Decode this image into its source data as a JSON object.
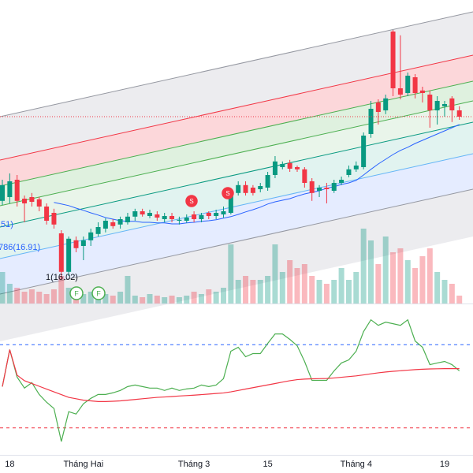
{
  "chart_data": [
    {
      "type": "candlestick",
      "categories": [
        null,
        "18",
        null,
        null,
        null,
        null,
        null,
        null,
        null,
        null,
        null,
        "Tháng Hai",
        null,
        null,
        null,
        null,
        null,
        null,
        null,
        null,
        null,
        null,
        null,
        null,
        null,
        null,
        "Tháng 3",
        null,
        null,
        null,
        null,
        null,
        null,
        null,
        null,
        null,
        "15",
        null,
        null,
        null,
        null,
        null,
        null,
        null,
        null,
        null,
        null,
        null,
        "Tháng 4",
        null,
        null,
        null,
        null,
        null,
        null,
        null,
        null,
        null,
        null,
        null,
        "19",
        null,
        null
      ],
      "open": [
        18.45,
        18.57,
        19.12,
        18.52,
        18.57,
        18.5,
        18.27,
        18.07,
        17.42,
        16.2,
        17.2,
        17.02,
        17.2,
        17.4,
        17.57,
        17.77,
        17.7,
        17.77,
        17.95,
        18.12,
        17.97,
        18.02,
        17.87,
        17.97,
        17.82,
        17.82,
        18.02,
        17.87,
        18.07,
        17.97,
        18.02,
        18.07,
        18.7,
        18.95,
        18.87,
        18.82,
        18.87,
        19.27,
        19.52,
        19.65,
        19.52,
        19.45,
        19.07,
        18.77,
        18.87,
        18.77,
        19.02,
        19.27,
        19.45,
        19.52,
        20.57,
        21.57,
        21.32,
        23.82,
        22.02,
        21.87,
        22.37,
        21.95,
        21.82,
        21.32,
        21.45,
        21.7,
        21.32
      ],
      "high": [
        19.12,
        19.32,
        19.27,
        18.62,
        18.7,
        18.57,
        18.37,
        18.2,
        17.52,
        17.32,
        17.32,
        17.32,
        17.57,
        17.77,
        17.9,
        17.87,
        17.95,
        18.07,
        18.2,
        18.2,
        18.17,
        18.12,
        18.07,
        18.07,
        17.95,
        18.02,
        18.12,
        18.07,
        18.12,
        18.17,
        18.27,
        18.82,
        19.07,
        19.07,
        18.95,
        19.02,
        19.37,
        19.87,
        19.7,
        19.75,
        19.57,
        19.52,
        19.17,
        18.95,
        19.02,
        19.12,
        19.22,
        19.57,
        19.7,
        20.62,
        21.62,
        21.67,
        21.82,
        23.87,
        23.7,
        22.52,
        22.47,
        22.07,
        21.95,
        21.77,
        21.62,
        21.77,
        21.45
      ],
      "low": [
        18.32,
        18.37,
        18.27,
        17.77,
        18.27,
        18.12,
        17.7,
        17.57,
        15.95,
        16.07,
        16.82,
        16.57,
        17.02,
        17.32,
        17.45,
        17.57,
        17.57,
        17.7,
        17.82,
        17.95,
        17.9,
        17.82,
        17.77,
        17.77,
        17.7,
        17.75,
        17.77,
        17.77,
        17.87,
        17.87,
        17.92,
        18.02,
        18.62,
        18.62,
        18.62,
        18.72,
        18.77,
        19.17,
        19.45,
        19.37,
        19.37,
        18.87,
        18.45,
        18.57,
        18.37,
        18.7,
        18.95,
        19.2,
        19.37,
        19.45,
        20.45,
        20.87,
        21.2,
        21.77,
        21.67,
        21.77,
        21.7,
        21.57,
        20.77,
        20.87,
        21.12,
        20.95,
        21.02
      ],
      "close": [
        18.95,
        19.07,
        18.45,
        18.37,
        18.42,
        18.27,
        17.82,
        17.7,
        16.2,
        17.25,
        16.95,
        17.2,
        17.45,
        17.62,
        17.82,
        17.65,
        17.87,
        17.95,
        18.12,
        18.02,
        18.07,
        17.92,
        17.97,
        17.87,
        17.85,
        17.92,
        17.87,
        18.0,
        17.97,
        18.07,
        18.12,
        18.7,
        18.95,
        18.7,
        18.7,
        18.92,
        19.27,
        19.7,
        19.62,
        19.47,
        19.45,
        19.02,
        18.7,
        18.87,
        18.82,
        19.02,
        19.12,
        19.45,
        19.57,
        20.52,
        21.37,
        21.27,
        21.7,
        22.02,
        21.82,
        22.42,
        21.87,
        21.87,
        21.32,
        21.62,
        21.52,
        21.32,
        21.12
      ],
      "ylim": [
        15.195,
        24.82
      ],
      "up_color": "#089981",
      "down_color": "#f23645",
      "series": [
        {
          "color": "#2962ff",
          "values": [
            null,
            null,
            null,
            null,
            null,
            null,
            null,
            18.4,
            18.35,
            18.3,
            18.22,
            18.15,
            18.07,
            18.0,
            17.92,
            17.87,
            17.82,
            17.8,
            17.8,
            17.77,
            17.77,
            17.75,
            17.75,
            17.72,
            17.72,
            17.75,
            17.77,
            17.8,
            17.82,
            17.85,
            17.9,
            17.95,
            18.02,
            18.1,
            18.17,
            18.25,
            18.35,
            18.42,
            18.47,
            18.52,
            18.6,
            18.67,
            18.72,
            18.77,
            18.85,
            18.9,
            18.97,
            19.02,
            19.1,
            19.27,
            19.45,
            19.62,
            19.77,
            19.92,
            20.05,
            20.15,
            20.27,
            20.37,
            20.47,
            20.57,
            20.67,
            20.77,
            20.87
          ]
        }
      ],
      "volume": {
        "ylim": [
          0,
          100
        ],
        "values": [
          40,
          25,
          20,
          15,
          18,
          15,
          12,
          18,
          35,
          20,
          15,
          12,
          15,
          10,
          12,
          10,
          15,
          35,
          10,
          8,
          12,
          10,
          8,
          10,
          8,
          10,
          15,
          12,
          18,
          15,
          20,
          75,
          30,
          35,
          30,
          30,
          35,
          75,
          40,
          55,
          45,
          50,
          35,
          30,
          25,
          30,
          45,
          30,
          40,
          95,
          80,
          50,
          85,
          65,
          70,
          55,
          45,
          60,
          70,
          40,
          30,
          25,
          10
        ]
      },
      "annotations": [
        ".51)",
        "786(16.91)",
        "1(16.02)"
      ],
      "markers": [
        "S",
        "S",
        "F",
        "F"
      ]
    },
    {
      "type": "line",
      "ylim": [
        0,
        100
      ],
      "levels": [
        {
          "value": 80,
          "color": "#2962ff"
        },
        {
          "value": 20,
          "color": "#f23645"
        }
      ],
      "series": [
        {
          "color": "#4caf50",
          "values": [
            49.8,
            76.4,
            56.6,
            48.7,
            52.6,
            44.1,
            38.5,
            34.0,
            10.2,
            31.7,
            30.0,
            37.4,
            41.3,
            44.1,
            44.1,
            45.3,
            47.0,
            49.8,
            50.9,
            49.8,
            48.7,
            48.7,
            47.0,
            48.7,
            47.0,
            48.1,
            48.7,
            50.9,
            49.8,
            50.9,
            55.5,
            75.3,
            78.1,
            71.3,
            73.6,
            73.6,
            80.9,
            87.7,
            87.7,
            83.8,
            79.2,
            67.9,
            54.3,
            54.3,
            54.3,
            61.1,
            66.8,
            69.0,
            75.3,
            89.4,
            97.9,
            93.9,
            96.2,
            95.1,
            93.9,
            97.9,
            82.6,
            78.1,
            65.6,
            66.8,
            67.9,
            65.6,
            61.1
          ]
        },
        {
          "color": "#f23645",
          "values": [
            49.8,
            76.4,
            58,
            54,
            52,
            50,
            48,
            46,
            44,
            42,
            41,
            40,
            39.5,
            39,
            39,
            39.2,
            39.5,
            40,
            40.5,
            41,
            41.5,
            42,
            42.3,
            42.6,
            43,
            43.3,
            43.6,
            44,
            44.4,
            44.8,
            45.2,
            46,
            47,
            48,
            49,
            50,
            51,
            52,
            53,
            54,
            54.8,
            55.2,
            55.4,
            55.5,
            55.6,
            56,
            56.5,
            57,
            57.5,
            58.2,
            59,
            59.7,
            60.3,
            60.8,
            61.2,
            61.6,
            62,
            62.3,
            62.5,
            62.6,
            62.7,
            62.7,
            62.7
          ]
        }
      ]
    }
  ]
}
